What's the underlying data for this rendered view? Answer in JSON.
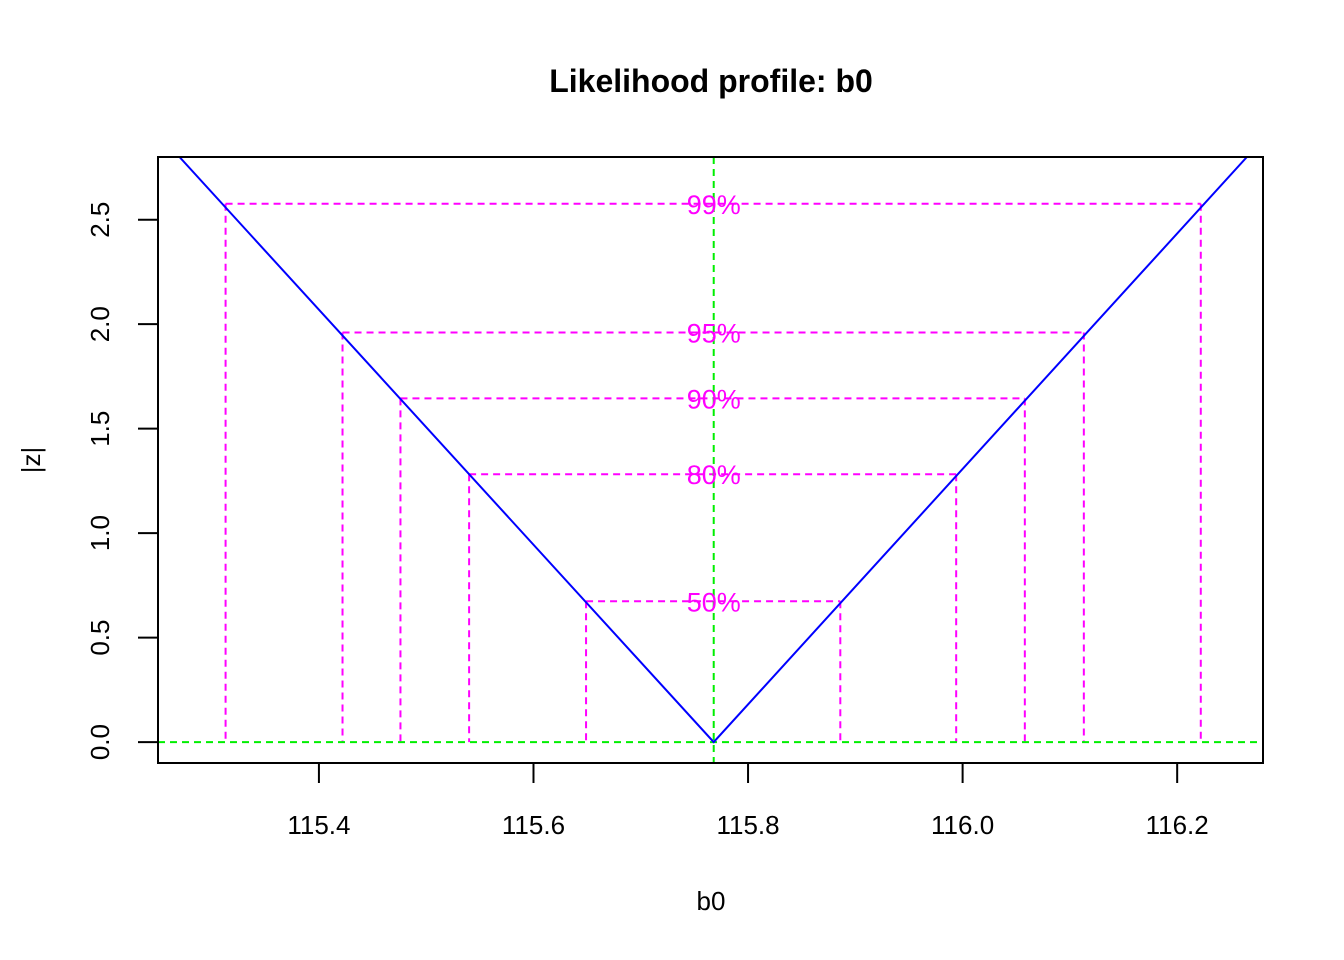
{
  "chart_data": {
    "type": "line",
    "title": "Likelihood profile: b0",
    "xlabel": "b0",
    "ylabel": "|z|",
    "xlim": [
      115.25,
      116.28
    ],
    "ylim": [
      -0.1,
      2.8
    ],
    "x_ticks": [
      115.4,
      115.6,
      115.8,
      116.0,
      116.2
    ],
    "x_tick_labels": [
      "115.4",
      "115.6",
      "115.8",
      "116.0",
      "116.2"
    ],
    "y_ticks": [
      0.0,
      0.5,
      1.0,
      1.5,
      2.0,
      2.5
    ],
    "y_tick_labels": [
      "0.0",
      "0.5",
      "1.0",
      "1.5",
      "2.0",
      "2.5"
    ],
    "estimate": 115.768,
    "profile_line": {
      "color": "#0000ff",
      "x": [
        115.27,
        115.768,
        116.265
      ],
      "y": [
        2.8,
        0.0,
        2.8
      ]
    },
    "reference_lines": {
      "color": "#00ee00",
      "vertical_x": 115.768,
      "horizontal_y": 0.0
    },
    "confidence_intervals": {
      "color": "#ff00ff",
      "levels": [
        {
          "label": "99%",
          "z": 2.576,
          "lower": 115.313,
          "upper": 116.222
        },
        {
          "label": "95%",
          "z": 1.96,
          "lower": 115.422,
          "upper": 116.113
        },
        {
          "label": "90%",
          "z": 1.645,
          "lower": 115.476,
          "upper": 116.058
        },
        {
          "label": "80%",
          "z": 1.282,
          "lower": 115.54,
          "upper": 115.994
        },
        {
          "label": "50%",
          "z": 0.674,
          "lower": 115.649,
          "upper": 115.886
        }
      ]
    }
  }
}
